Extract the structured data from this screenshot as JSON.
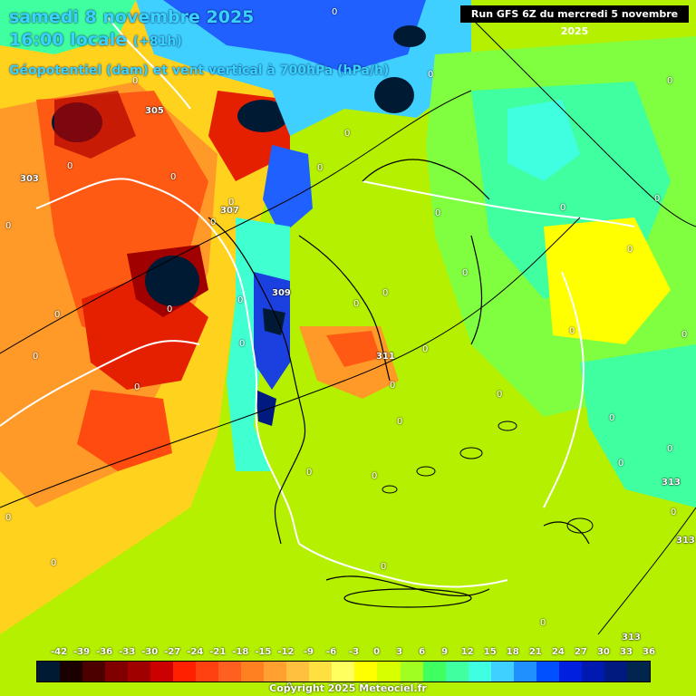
{
  "header": {
    "date_line": "samedi 8 novembre 2025",
    "time_line": "16:00 locale",
    "lead_time": "(+81h)",
    "field_line": "Géopotentiel (dam) et vent vertical à 700hPa (hPa/h)",
    "run_info": "Run GFS 6Z du mercredi 5 novembre 2025"
  },
  "contour_labels": [
    "303",
    "305",
    "307",
    "309",
    "311",
    "313",
    "313",
    "313"
  ],
  "zero_label": "0",
  "scale": {
    "ticks": [
      "-42",
      "-39",
      "-36",
      "-33",
      "-30",
      "-27",
      "-24",
      "-21",
      "-18",
      "-15",
      "-12",
      "-9",
      "-6",
      "-3",
      "0",
      "3",
      "6",
      "9",
      "12",
      "15",
      "18",
      "21",
      "24",
      "27",
      "30",
      "33",
      "36"
    ],
    "colors": [
      "#001a33",
      "#1a0000",
      "#4d0000",
      "#800000",
      "#a00000",
      "#cc0000",
      "#ff2000",
      "#ff4010",
      "#ff6020",
      "#ff8020",
      "#ffa030",
      "#ffc040",
      "#ffe040",
      "#ffff60",
      "#ffff00",
      "#d8ff00",
      "#a0ff20",
      "#40ff60",
      "#40ffa0",
      "#40ffe0",
      "#40d0ff",
      "#2090ff",
      "#0050ff",
      "#0020e0",
      "#001ab0",
      "#001a80",
      "#00264d"
    ]
  },
  "footer": {
    "copyright": "Copyright 2025 Meteociel.fr"
  },
  "legend": {
    "description": ""
  }
}
